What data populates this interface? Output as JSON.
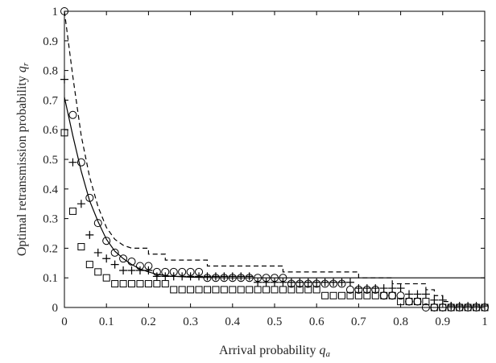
{
  "chart_data": {
    "type": "line",
    "title": "",
    "xlabel": "Arrival probability",
    "xlabel_var": "q",
    "xlabel_sub": "a",
    "ylabel": "Optimal retransmission probability",
    "ylabel_var": "q",
    "ylabel_sub": "r",
    "xlim": [
      0,
      1
    ],
    "ylim": [
      0,
      1
    ],
    "x_ticks": [
      0,
      0.1,
      0.2,
      0.3,
      0.4,
      0.5,
      0.6,
      0.7,
      0.8,
      0.9,
      1
    ],
    "x_tick_labels": [
      "0",
      "0.1",
      "0.2",
      "0.3",
      "0.4",
      "0.5",
      "0.6",
      "0.7",
      "0.8",
      "0.9",
      "1"
    ],
    "y_ticks": [
      0,
      0.1,
      0.2,
      0.3,
      0.4,
      0.5,
      0.6,
      0.7,
      0.8,
      0.9,
      1
    ],
    "y_tick_labels": [
      "0",
      "0.1",
      "0.2",
      "0.3",
      "0.4",
      "0.5",
      "0.6",
      "0.7",
      "0.8",
      "0.9",
      "1"
    ],
    "grid": false,
    "legend": "none",
    "colors": {
      "line": "#000000",
      "axis": "#000000",
      "background": "#ffffff"
    },
    "series": [
      {
        "style": "solid",
        "points": [
          [
            0,
            0.71
          ],
          [
            0.02,
            0.58
          ],
          [
            0.04,
            0.46
          ],
          [
            0.06,
            0.36
          ],
          [
            0.08,
            0.29
          ],
          [
            0.1,
            0.23
          ],
          [
            0.12,
            0.19
          ],
          [
            0.14,
            0.165
          ],
          [
            0.16,
            0.145
          ],
          [
            0.18,
            0.13
          ],
          [
            0.2,
            0.12
          ],
          [
            0.22,
            0.112
          ],
          [
            0.25,
            0.106
          ],
          [
            0.3,
            0.102
          ],
          [
            0.4,
            0.1
          ],
          [
            0.5,
            0.1
          ],
          [
            0.6,
            0.1
          ],
          [
            0.7,
            0.1
          ],
          [
            0.8,
            0.1
          ],
          [
            0.9,
            0.1
          ],
          [
            1,
            0.1
          ]
        ]
      },
      {
        "style": "dashed",
        "points": [
          [
            0,
            1
          ],
          [
            0.02,
            0.78
          ],
          [
            0.04,
            0.58
          ],
          [
            0.06,
            0.44
          ],
          [
            0.08,
            0.34
          ],
          [
            0.1,
            0.27
          ],
          [
            0.12,
            0.23
          ],
          [
            0.14,
            0.21
          ],
          [
            0.16,
            0.2
          ],
          [
            0.2,
            0.2
          ],
          [
            0.2,
            0.18
          ],
          [
            0.24,
            0.18
          ],
          [
            0.24,
            0.16
          ],
          [
            0.34,
            0.16
          ],
          [
            0.34,
            0.14
          ],
          [
            0.52,
            0.14
          ],
          [
            0.52,
            0.12
          ],
          [
            0.7,
            0.12
          ],
          [
            0.7,
            0.1
          ],
          [
            0.78,
            0.1
          ],
          [
            0.78,
            0.08
          ],
          [
            0.86,
            0.08
          ],
          [
            0.86,
            0.06
          ],
          [
            0.88,
            0.06
          ],
          [
            0.88,
            0.04
          ],
          [
            0.9,
            0.04
          ],
          [
            0.9,
            0.02
          ],
          [
            0.92,
            0.02
          ],
          [
            0.92,
            0
          ],
          [
            1,
            0
          ]
        ]
      },
      {
        "style": "marker",
        "marker": "circle",
        "points": [
          [
            0,
            1
          ],
          [
            0.02,
            0.65
          ],
          [
            0.04,
            0.49
          ],
          [
            0.06,
            0.37
          ],
          [
            0.08,
            0.285
          ],
          [
            0.1,
            0.225
          ],
          [
            0.12,
            0.185
          ],
          [
            0.14,
            0.165
          ],
          [
            0.16,
            0.155
          ],
          [
            0.18,
            0.14
          ],
          [
            0.2,
            0.14
          ],
          [
            0.22,
            0.12
          ],
          [
            0.24,
            0.12
          ],
          [
            0.26,
            0.12
          ],
          [
            0.28,
            0.12
          ],
          [
            0.3,
            0.12
          ],
          [
            0.32,
            0.12
          ],
          [
            0.34,
            0.1
          ],
          [
            0.36,
            0.1
          ],
          [
            0.38,
            0.1
          ],
          [
            0.4,
            0.1
          ],
          [
            0.42,
            0.1
          ],
          [
            0.44,
            0.1
          ],
          [
            0.46,
            0.1
          ],
          [
            0.48,
            0.1
          ],
          [
            0.5,
            0.1
          ],
          [
            0.52,
            0.1
          ],
          [
            0.54,
            0.08
          ],
          [
            0.56,
            0.08
          ],
          [
            0.58,
            0.08
          ],
          [
            0.6,
            0.08
          ],
          [
            0.62,
            0.08
          ],
          [
            0.64,
            0.08
          ],
          [
            0.66,
            0.08
          ],
          [
            0.68,
            0.06
          ],
          [
            0.7,
            0.06
          ],
          [
            0.72,
            0.06
          ],
          [
            0.74,
            0.06
          ],
          [
            0.76,
            0.04
          ],
          [
            0.78,
            0.04
          ],
          [
            0.8,
            0.04
          ],
          [
            0.82,
            0.02
          ],
          [
            0.84,
            0.02
          ],
          [
            0.86,
            0
          ],
          [
            0.88,
            0
          ],
          [
            0.9,
            0
          ],
          [
            0.92,
            0
          ],
          [
            0.94,
            0
          ],
          [
            0.96,
            0
          ],
          [
            0.98,
            0
          ],
          [
            1,
            0
          ]
        ]
      },
      {
        "style": "marker",
        "marker": "plus",
        "points": [
          [
            0,
            0.77
          ],
          [
            0.02,
            0.49
          ],
          [
            0.04,
            0.35
          ],
          [
            0.06,
            0.245
          ],
          [
            0.08,
            0.185
          ],
          [
            0.1,
            0.165
          ],
          [
            0.12,
            0.145
          ],
          [
            0.14,
            0.125
          ],
          [
            0.16,
            0.125
          ],
          [
            0.18,
            0.125
          ],
          [
            0.2,
            0.125
          ],
          [
            0.22,
            0.105
          ],
          [
            0.24,
            0.105
          ],
          [
            0.26,
            0.105
          ],
          [
            0.28,
            0.105
          ],
          [
            0.3,
            0.105
          ],
          [
            0.32,
            0.105
          ],
          [
            0.34,
            0.105
          ],
          [
            0.36,
            0.105
          ],
          [
            0.38,
            0.105
          ],
          [
            0.4,
            0.105
          ],
          [
            0.42,
            0.105
          ],
          [
            0.44,
            0.105
          ],
          [
            0.46,
            0.085
          ],
          [
            0.48,
            0.085
          ],
          [
            0.5,
            0.085
          ],
          [
            0.52,
            0.085
          ],
          [
            0.54,
            0.085
          ],
          [
            0.56,
            0.085
          ],
          [
            0.58,
            0.085
          ],
          [
            0.6,
            0.085
          ],
          [
            0.62,
            0.085
          ],
          [
            0.64,
            0.085
          ],
          [
            0.66,
            0.085
          ],
          [
            0.68,
            0.085
          ],
          [
            0.7,
            0.065
          ],
          [
            0.72,
            0.065
          ],
          [
            0.74,
            0.065
          ],
          [
            0.76,
            0.065
          ],
          [
            0.78,
            0.065
          ],
          [
            0.8,
            0.065
          ],
          [
            0.82,
            0.045
          ],
          [
            0.84,
            0.045
          ],
          [
            0.86,
            0.045
          ],
          [
            0.88,
            0.025
          ],
          [
            0.9,
            0.025
          ],
          [
            0.92,
            0.005
          ],
          [
            0.94,
            0.005
          ],
          [
            0.96,
            0.005
          ],
          [
            0.98,
            0.005
          ],
          [
            1,
            0.005
          ]
        ]
      },
      {
        "style": "marker",
        "marker": "square",
        "points": [
          [
            0,
            0.59
          ],
          [
            0.02,
            0.325
          ],
          [
            0.04,
            0.205
          ],
          [
            0.06,
            0.145
          ],
          [
            0.08,
            0.12
          ],
          [
            0.1,
            0.1
          ],
          [
            0.12,
            0.08
          ],
          [
            0.14,
            0.08
          ],
          [
            0.16,
            0.08
          ],
          [
            0.18,
            0.08
          ],
          [
            0.2,
            0.08
          ],
          [
            0.22,
            0.08
          ],
          [
            0.24,
            0.08
          ],
          [
            0.26,
            0.06
          ],
          [
            0.28,
            0.06
          ],
          [
            0.3,
            0.06
          ],
          [
            0.32,
            0.06
          ],
          [
            0.34,
            0.06
          ],
          [
            0.36,
            0.06
          ],
          [
            0.38,
            0.06
          ],
          [
            0.4,
            0.06
          ],
          [
            0.42,
            0.06
          ],
          [
            0.44,
            0.06
          ],
          [
            0.46,
            0.06
          ],
          [
            0.48,
            0.06
          ],
          [
            0.5,
            0.06
          ],
          [
            0.52,
            0.06
          ],
          [
            0.54,
            0.06
          ],
          [
            0.56,
            0.06
          ],
          [
            0.58,
            0.06
          ],
          [
            0.6,
            0.06
          ],
          [
            0.62,
            0.04
          ],
          [
            0.64,
            0.04
          ],
          [
            0.66,
            0.04
          ],
          [
            0.68,
            0.04
          ],
          [
            0.7,
            0.04
          ],
          [
            0.72,
            0.04
          ],
          [
            0.74,
            0.04
          ],
          [
            0.76,
            0.04
          ],
          [
            0.78,
            0.04
          ],
          [
            0.8,
            0.02
          ],
          [
            0.82,
            0.02
          ],
          [
            0.84,
            0.02
          ],
          [
            0.86,
            0.02
          ],
          [
            0.88,
            0
          ],
          [
            0.9,
            0
          ],
          [
            0.92,
            0
          ],
          [
            0.94,
            0
          ],
          [
            0.96,
            0
          ],
          [
            0.98,
            0
          ],
          [
            1,
            0
          ]
        ]
      }
    ]
  }
}
